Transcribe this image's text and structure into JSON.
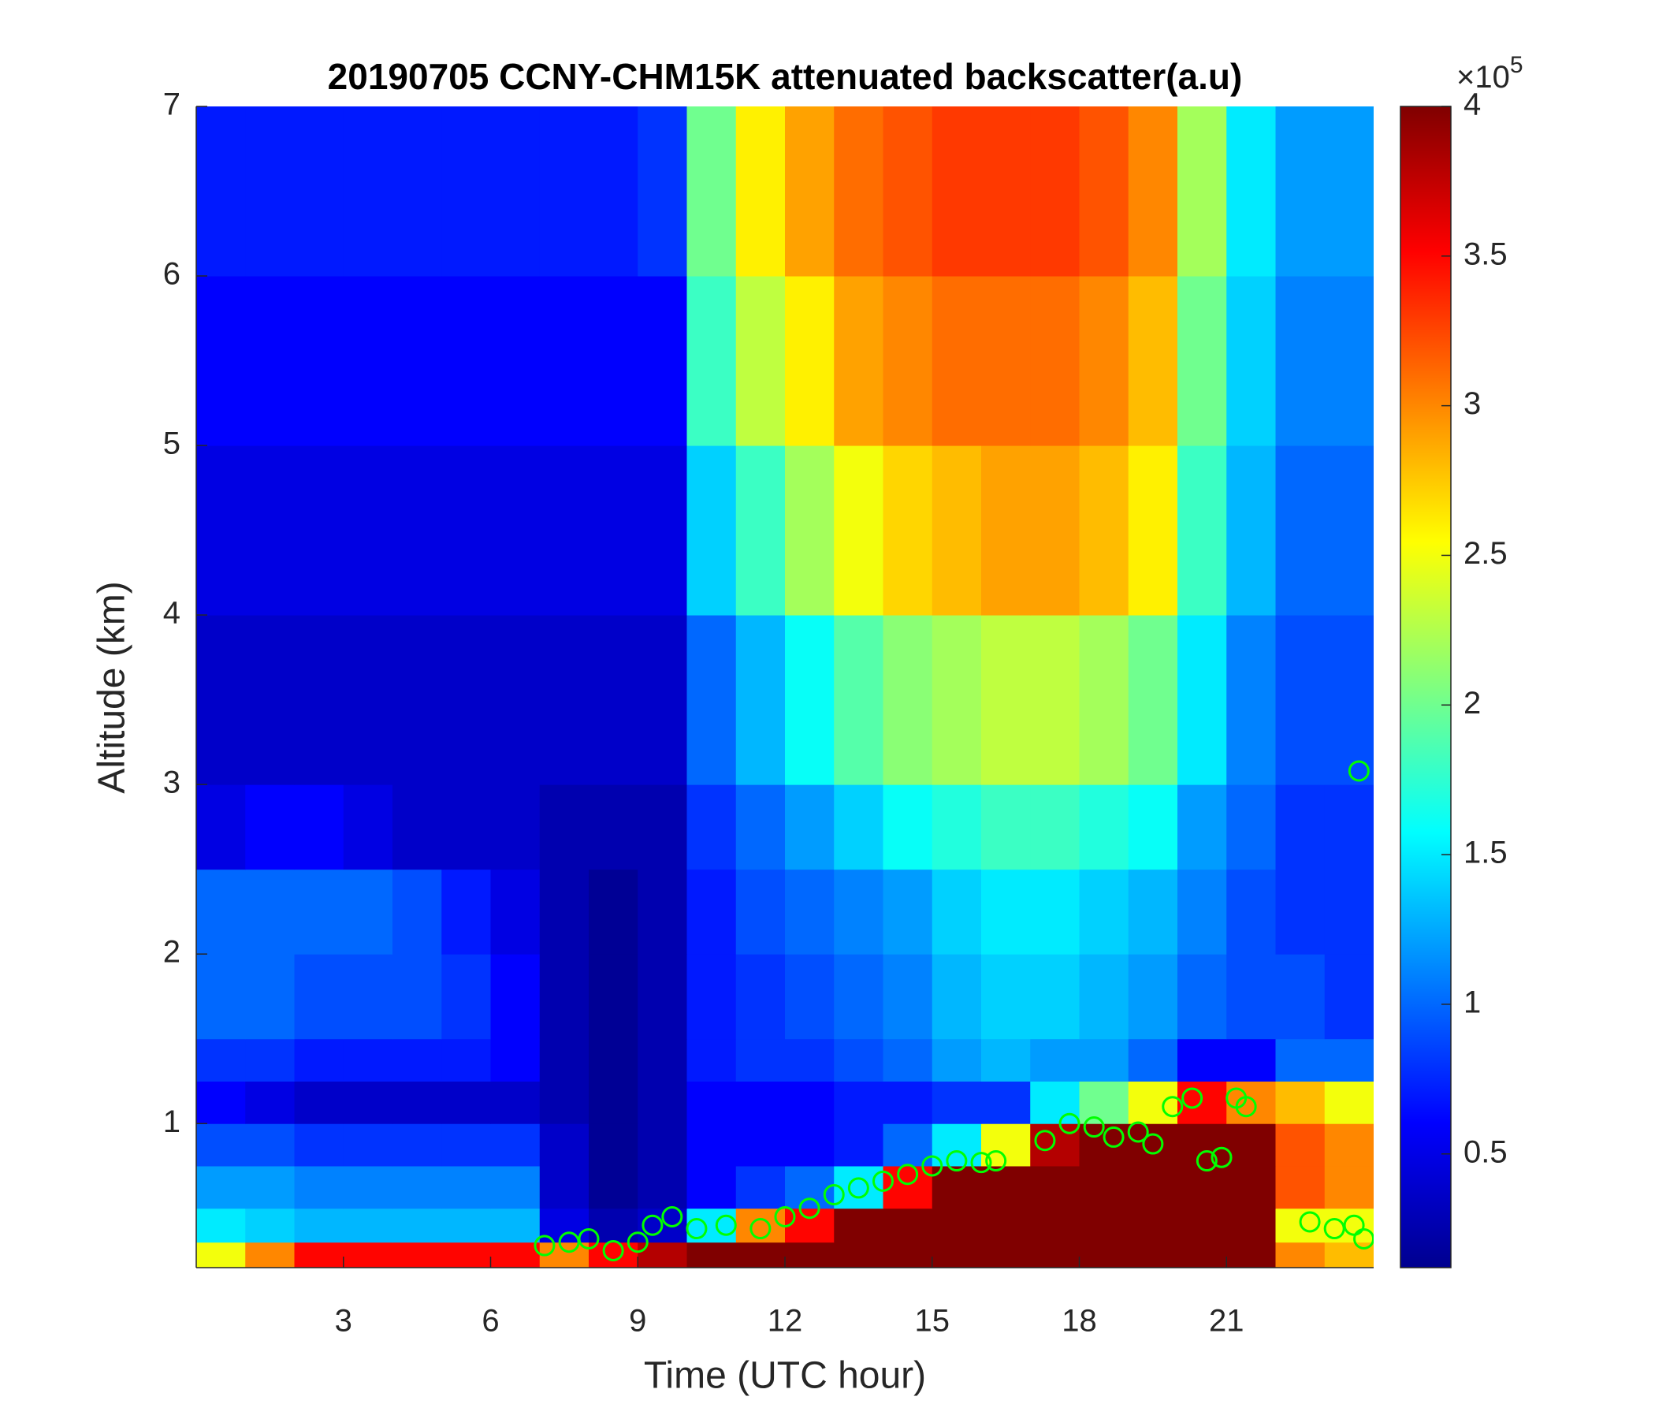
{
  "chart_data": {
    "type": "heatmap",
    "title": "20190705 CCNY-CHM15K attenuated backscatter(a.u)",
    "x_label": "Time (UTC hour)",
    "y_label": "Altitude (km)",
    "xlim": [
      0,
      24
    ],
    "ylim": [
      0.15,
      7
    ],
    "xticks": [
      3,
      6,
      9,
      12,
      15,
      18,
      21
    ],
    "yticks": [
      1,
      2,
      3,
      4,
      5,
      6,
      7
    ],
    "clim": [
      0.12,
      4
    ],
    "cticks": [
      0.5,
      1,
      1.5,
      2,
      2.5,
      3,
      3.5,
      4
    ],
    "colorbar_multiplier": "×10",
    "colorbar_exponent": 5,
    "colormap": "jet",
    "x_edges": [
      0,
      1,
      2,
      3,
      4,
      5,
      6,
      7,
      8,
      9,
      10,
      11,
      12,
      13,
      14,
      15,
      16,
      17,
      18,
      19,
      20,
      21,
      22,
      23,
      24
    ],
    "y_edges": [
      0.15,
      0.3,
      0.5,
      0.75,
      1.0,
      1.25,
      1.5,
      2,
      2.5,
      3,
      4,
      5,
      6,
      7
    ],
    "z": [
      [
        2.5,
        3,
        3.5,
        3.5,
        3.5,
        3.5,
        3.5,
        3,
        3.5,
        3.8,
        4,
        4,
        4,
        4,
        4,
        4,
        4,
        4,
        4,
        4,
        4,
        4,
        3,
        2.8
      ],
      [
        1.5,
        1.4,
        1.3,
        1.3,
        1.3,
        1.3,
        1.3,
        0.5,
        0.3,
        0.4,
        1.5,
        3,
        3.5,
        4,
        4,
        4,
        4,
        4,
        4,
        4,
        4,
        4,
        2.5,
        2.5
      ],
      [
        1.2,
        1.2,
        1.1,
        1.1,
        1.1,
        1.1,
        1.1,
        0.4,
        0.2,
        0.3,
        0.6,
        0.8,
        1,
        1.5,
        3.5,
        4,
        4,
        4,
        4,
        4,
        4,
        4,
        3.2,
        3
      ],
      [
        0.9,
        0.9,
        0.8,
        0.8,
        0.8,
        0.8,
        0.8,
        0.4,
        0.2,
        0.3,
        0.6,
        0.6,
        0.6,
        0.7,
        1,
        1.5,
        2.5,
        3.8,
        4,
        4,
        4,
        4,
        3.2,
        3
      ],
      [
        0.6,
        0.5,
        0.4,
        0.4,
        0.4,
        0.4,
        0.4,
        0.3,
        0.2,
        0.3,
        0.6,
        0.6,
        0.6,
        0.7,
        0.7,
        0.8,
        0.8,
        1.5,
        2,
        2.5,
        3.5,
        3,
        2.8,
        2.5
      ],
      [
        0.8,
        0.8,
        0.7,
        0.7,
        0.7,
        0.7,
        0.6,
        0.3,
        0.2,
        0.3,
        0.7,
        0.8,
        0.8,
        0.9,
        1,
        1.2,
        1.3,
        1.2,
        1.2,
        1,
        0.6,
        0.6,
        1,
        1
      ],
      [
        1,
        1,
        0.9,
        0.9,
        0.9,
        0.8,
        0.6,
        0.3,
        0.2,
        0.3,
        0.7,
        0.8,
        0.9,
        1,
        1.1,
        1.3,
        1.4,
        1.4,
        1.3,
        1.2,
        1,
        0.9,
        0.9,
        0.8
      ],
      [
        1,
        1,
        1,
        1,
        0.9,
        0.7,
        0.5,
        0.3,
        0.2,
        0.3,
        0.7,
        0.9,
        1,
        1.1,
        1.2,
        1.4,
        1.5,
        1.5,
        1.4,
        1.3,
        1.1,
        0.9,
        0.8,
        0.8
      ],
      [
        0.5,
        0.6,
        0.6,
        0.5,
        0.4,
        0.4,
        0.4,
        0.3,
        0.3,
        0.3,
        0.8,
        1,
        1.2,
        1.4,
        1.6,
        1.7,
        1.8,
        1.8,
        1.7,
        1.6,
        1.2,
        1,
        0.8,
        0.8
      ],
      [
        0.4,
        0.4,
        0.4,
        0.4,
        0.4,
        0.4,
        0.4,
        0.4,
        0.4,
        0.4,
        1,
        1.3,
        1.6,
        1.9,
        2.1,
        2.2,
        2.3,
        2.3,
        2.2,
        2,
        1.5,
        1.1,
        0.9,
        0.9
      ],
      [
        0.5,
        0.5,
        0.5,
        0.5,
        0.5,
        0.5,
        0.5,
        0.5,
        0.5,
        0.5,
        1.4,
        1.8,
        2.2,
        2.5,
        2.7,
        2.8,
        2.9,
        2.9,
        2.8,
        2.6,
        1.8,
        1.3,
        1,
        1
      ],
      [
        0.6,
        0.6,
        0.6,
        0.6,
        0.6,
        0.6,
        0.6,
        0.6,
        0.6,
        0.6,
        1.8,
        2.3,
        2.6,
        2.9,
        3,
        3.1,
        3.1,
        3.1,
        3,
        2.8,
        2,
        1.4,
        1.1,
        1.1
      ],
      [
        0.7,
        0.7,
        0.7,
        0.7,
        0.7,
        0.7,
        0.7,
        0.7,
        0.7,
        0.8,
        2,
        2.6,
        2.9,
        3.1,
        3.2,
        3.3,
        3.3,
        3.3,
        3.2,
        3,
        2.2,
        1.5,
        1.2,
        1.2
      ]
    ],
    "points": {
      "color": "#00ff00",
      "x": [
        7.1,
        7.6,
        8,
        8.5,
        9,
        9.3,
        9.7,
        10.2,
        10.8,
        11.5,
        12,
        12.5,
        13,
        13.5,
        14,
        14.5,
        15,
        15.5,
        16,
        16.3,
        17.3,
        17.8,
        18.3,
        18.7,
        19.2,
        19.5,
        19.9,
        20.3,
        20.6,
        20.9,
        21.2,
        21.4,
        22.7,
        23.2,
        23.6,
        23.8,
        23.7
      ],
      "y": [
        0.28,
        0.3,
        0.32,
        0.25,
        0.3,
        0.4,
        0.45,
        0.38,
        0.4,
        0.38,
        0.45,
        0.5,
        0.58,
        0.62,
        0.66,
        0.7,
        0.75,
        0.78,
        0.77,
        0.78,
        0.9,
        1.0,
        0.98,
        0.92,
        0.95,
        0.88,
        1.1,
        1.15,
        0.78,
        0.8,
        1.15,
        1.1,
        0.42,
        0.38,
        0.4,
        0.32,
        3.08
      ]
    }
  }
}
